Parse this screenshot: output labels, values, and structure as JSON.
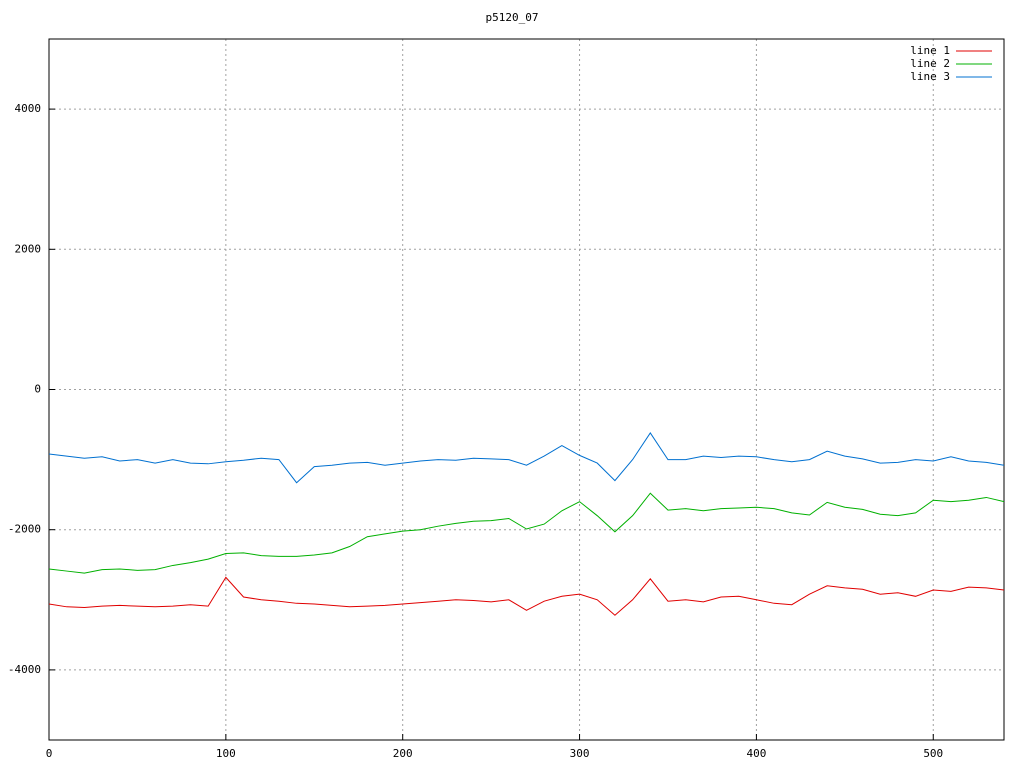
{
  "chart_data": {
    "type": "line",
    "title": "p5120_07",
    "x": [
      0,
      10,
      20,
      30,
      40,
      50,
      60,
      70,
      80,
      90,
      100,
      110,
      120,
      130,
      140,
      150,
      160,
      170,
      180,
      190,
      200,
      210,
      220,
      230,
      240,
      250,
      260,
      270,
      280,
      290,
      300,
      310,
      320,
      330,
      340,
      350,
      360,
      370,
      380,
      390,
      400,
      410,
      420,
      430,
      440,
      450,
      460,
      470,
      480,
      490,
      500,
      510,
      520,
      530,
      540
    ],
    "series": [
      {
        "name": "line 1",
        "color": "#e00000",
        "values": [
          -3060,
          -3100,
          -3110,
          -3090,
          -3080,
          -3090,
          -3100,
          -3090,
          -3070,
          -3090,
          -2680,
          -2960,
          -3000,
          -3020,
          -3050,
          -3060,
          -3080,
          -3100,
          -3090,
          -3080,
          -3060,
          -3040,
          -3020,
          -3000,
          -3010,
          -3030,
          -3000,
          -3150,
          -3020,
          -2950,
          -2920,
          -3000,
          -3220,
          -3000,
          -2700,
          -3020,
          -3000,
          -3030,
          -2960,
          -2950,
          -3000,
          -3050,
          -3070,
          -2920,
          -2800,
          -2830,
          -2850,
          -2920,
          -2900,
          -2950,
          -2860,
          -2880,
          -2820,
          -2830,
          -2860
        ]
      },
      {
        "name": "line 2",
        "color": "#00b000",
        "values": [
          -2560,
          -2590,
          -2620,
          -2570,
          -2560,
          -2580,
          -2570,
          -2510,
          -2470,
          -2420,
          -2340,
          -2330,
          -2370,
          -2380,
          -2380,
          -2360,
          -2330,
          -2240,
          -2100,
          -2060,
          -2020,
          -2000,
          -1950,
          -1910,
          -1880,
          -1870,
          -1840,
          -1990,
          -1920,
          -1730,
          -1600,
          -1800,
          -2030,
          -1800,
          -1480,
          -1720,
          -1700,
          -1730,
          -1700,
          -1690,
          -1680,
          -1700,
          -1760,
          -1790,
          -1610,
          -1680,
          -1710,
          -1780,
          -1800,
          -1760,
          -1580,
          -1600,
          -1580,
          -1540,
          -1600
        ]
      },
      {
        "name": "line 3",
        "color": "#0070d0",
        "values": [
          -920,
          -950,
          -980,
          -960,
          -1020,
          -1000,
          -1050,
          -1000,
          -1050,
          -1060,
          -1030,
          -1010,
          -980,
          -1000,
          -1330,
          -1100,
          -1080,
          -1050,
          -1040,
          -1080,
          -1050,
          -1020,
          -1000,
          -1010,
          -980,
          -990,
          -1000,
          -1080,
          -950,
          -800,
          -940,
          -1050,
          -1300,
          -1000,
          -620,
          -1000,
          -1000,
          -950,
          -970,
          -950,
          -960,
          -1000,
          -1030,
          -1000,
          -880,
          -950,
          -990,
          -1050,
          -1040,
          -1000,
          -1020,
          -960,
          -1020,
          -1040,
          -1080
        ]
      }
    ],
    "xlim": [
      0,
      540
    ],
    "xticks": [
      0,
      100,
      200,
      300,
      400,
      500
    ],
    "ylim": [
      -5000,
      5000
    ],
    "yticks": [
      -4000,
      -2000,
      0,
      2000,
      4000
    ],
    "grid": true,
    "legend": "top-right"
  }
}
